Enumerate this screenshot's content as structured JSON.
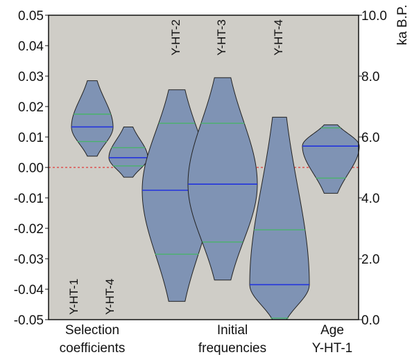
{
  "chart_data": {
    "type": "violin",
    "left_axis": {
      "ylim": [
        -0.05,
        0.05
      ],
      "ticks": [
        "0.05",
        "0.04",
        "0.03",
        "0.02",
        "0.01",
        "0.00",
        "-0.01",
        "-0.02",
        "-0.03",
        "-0.04",
        "-0.05"
      ]
    },
    "right_axis": {
      "label": "ka B.P.",
      "ylim": [
        0.0,
        10.0
      ],
      "ticks": [
        "10.0",
        "8.0",
        "6.0",
        "4.0",
        "2.0",
        "0.0"
      ]
    },
    "reference_line": {
      "y": 0.0,
      "color": "#e03a3a",
      "style": "dashed"
    },
    "colors": {
      "background": "#cfcdc7",
      "violin_fill": "#7f93b4",
      "median": "#2233dd",
      "quantile": "#49b36a"
    },
    "group_labels": [
      {
        "line1": "Selection",
        "line2": "coefficients"
      },
      {
        "line1": "Initial",
        "line2": "frequencies"
      },
      {
        "line1": "Age",
        "line2": "Y-HT-1"
      }
    ],
    "violins": [
      {
        "label": "Y-HT-1",
        "label_position": "bottom",
        "axis": "left",
        "min": 0.0037,
        "max": 0.0285,
        "median": 0.0133,
        "q_low": 0.0085,
        "q_high": 0.0175
      },
      {
        "label": "Y-HT-4",
        "label_position": "bottom",
        "axis": "left",
        "min": -0.0032,
        "max": 0.0133,
        "median": 0.0032,
        "q_low": 0.0005,
        "q_high": 0.0065
      },
      {
        "label": "Y-HT-2",
        "label_position": "top",
        "axis": "left",
        "min": -0.044,
        "max": 0.0255,
        "median": -0.0075,
        "q_low": -0.0285,
        "q_high": 0.0145
      },
      {
        "label": "Y-HT-3",
        "label_position": "top",
        "axis": "left",
        "min": -0.037,
        "max": 0.0295,
        "median": -0.0055,
        "q_low": -0.0245,
        "q_high": 0.0145
      },
      {
        "label": "Y-HT-4",
        "label_position": "top",
        "axis": "left",
        "min": -0.05,
        "max": 0.0165,
        "median": -0.0385,
        "q_low": -0.0495,
        "q_high": -0.0205
      },
      {
        "label": "",
        "label_position": "none",
        "axis": "right",
        "min": 4.15,
        "max": 6.4,
        "median": 5.7,
        "q_low": 4.65,
        "q_high": 6.3
      }
    ]
  }
}
